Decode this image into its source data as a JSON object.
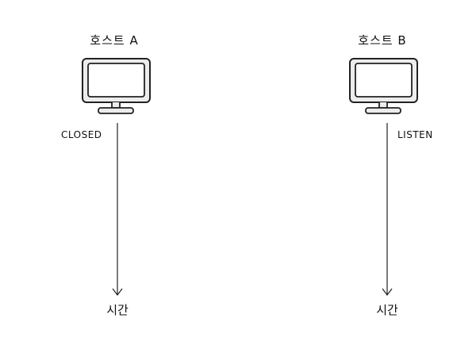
{
  "hosts": [
    {
      "title": "호스트 A",
      "state": "CLOSED",
      "time_label": "시간",
      "icon": "monitor-icon"
    },
    {
      "title": "호스트 B",
      "state": "LISTEN",
      "time_label": "시간",
      "icon": "monitor-icon"
    }
  ],
  "colors": {
    "stroke": "#222222",
    "screen": "#ffffff",
    "frame": "#ececec"
  }
}
